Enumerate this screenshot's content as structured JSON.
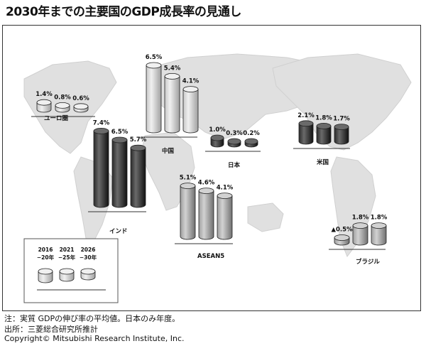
{
  "title": "2030年までの主要国のGDP成長率の見通し",
  "notes": [
    "注：実質 GDPの伸び率の平均値。日本のみ年度。",
    "出所：三菱総合研究所推計",
    "Copyright© Mitsubishi Research Institute, Inc."
  ],
  "colors": {
    "light": "#d9d9d9",
    "mid": "#a6a6a6",
    "dark": "#2b2b2b",
    "map": "#e0e0e0"
  },
  "chart_data": {
    "type": "bar",
    "unit": "%",
    "categories": [
      "2016\n−20年",
      "2021\n−25年",
      "2026\n−30年"
    ],
    "regions": [
      {
        "name": "ユーロ圏",
        "values": [
          1.4,
          0.8,
          0.6
        ],
        "labels": [
          "1.4%",
          "0.8%",
          "0.6%"
        ],
        "shade": "light"
      },
      {
        "name": "中国",
        "values": [
          6.5,
          5.4,
          4.1
        ],
        "labels": [
          "6.5%",
          "5.4%",
          "4.1%"
        ],
        "shade": "light"
      },
      {
        "name": "インド",
        "values": [
          7.4,
          6.5,
          5.7
        ],
        "labels": [
          "7.4%",
          "6.5%",
          "5.7%"
        ],
        "shade": "dark"
      },
      {
        "name": "日本",
        "values": [
          1.0,
          0.3,
          0.2
        ],
        "labels": [
          "1.0%",
          "0.3%",
          "0.2%"
        ],
        "shade": "dark"
      },
      {
        "name": "米国",
        "values": [
          2.1,
          1.8,
          1.7
        ],
        "labels": [
          "2.1%",
          "1.8%",
          "1.7%"
        ],
        "shade": "dark"
      },
      {
        "name": "ASEAN5",
        "values": [
          5.1,
          4.6,
          4.1
        ],
        "labels": [
          "5.1%",
          "4.6%",
          "4.1%"
        ],
        "shade": "mid"
      },
      {
        "name": "ブラジル",
        "values": [
          -0.5,
          1.8,
          1.8
        ],
        "labels": [
          "▲0.5%",
          "1.8%",
          "1.8%"
        ],
        "shade": "mid"
      }
    ],
    "legend": {
      "labels": [
        "2016\n−20年",
        "2021\n−25年",
        "2026\n−30年"
      ],
      "placement": "bottom-left"
    }
  }
}
